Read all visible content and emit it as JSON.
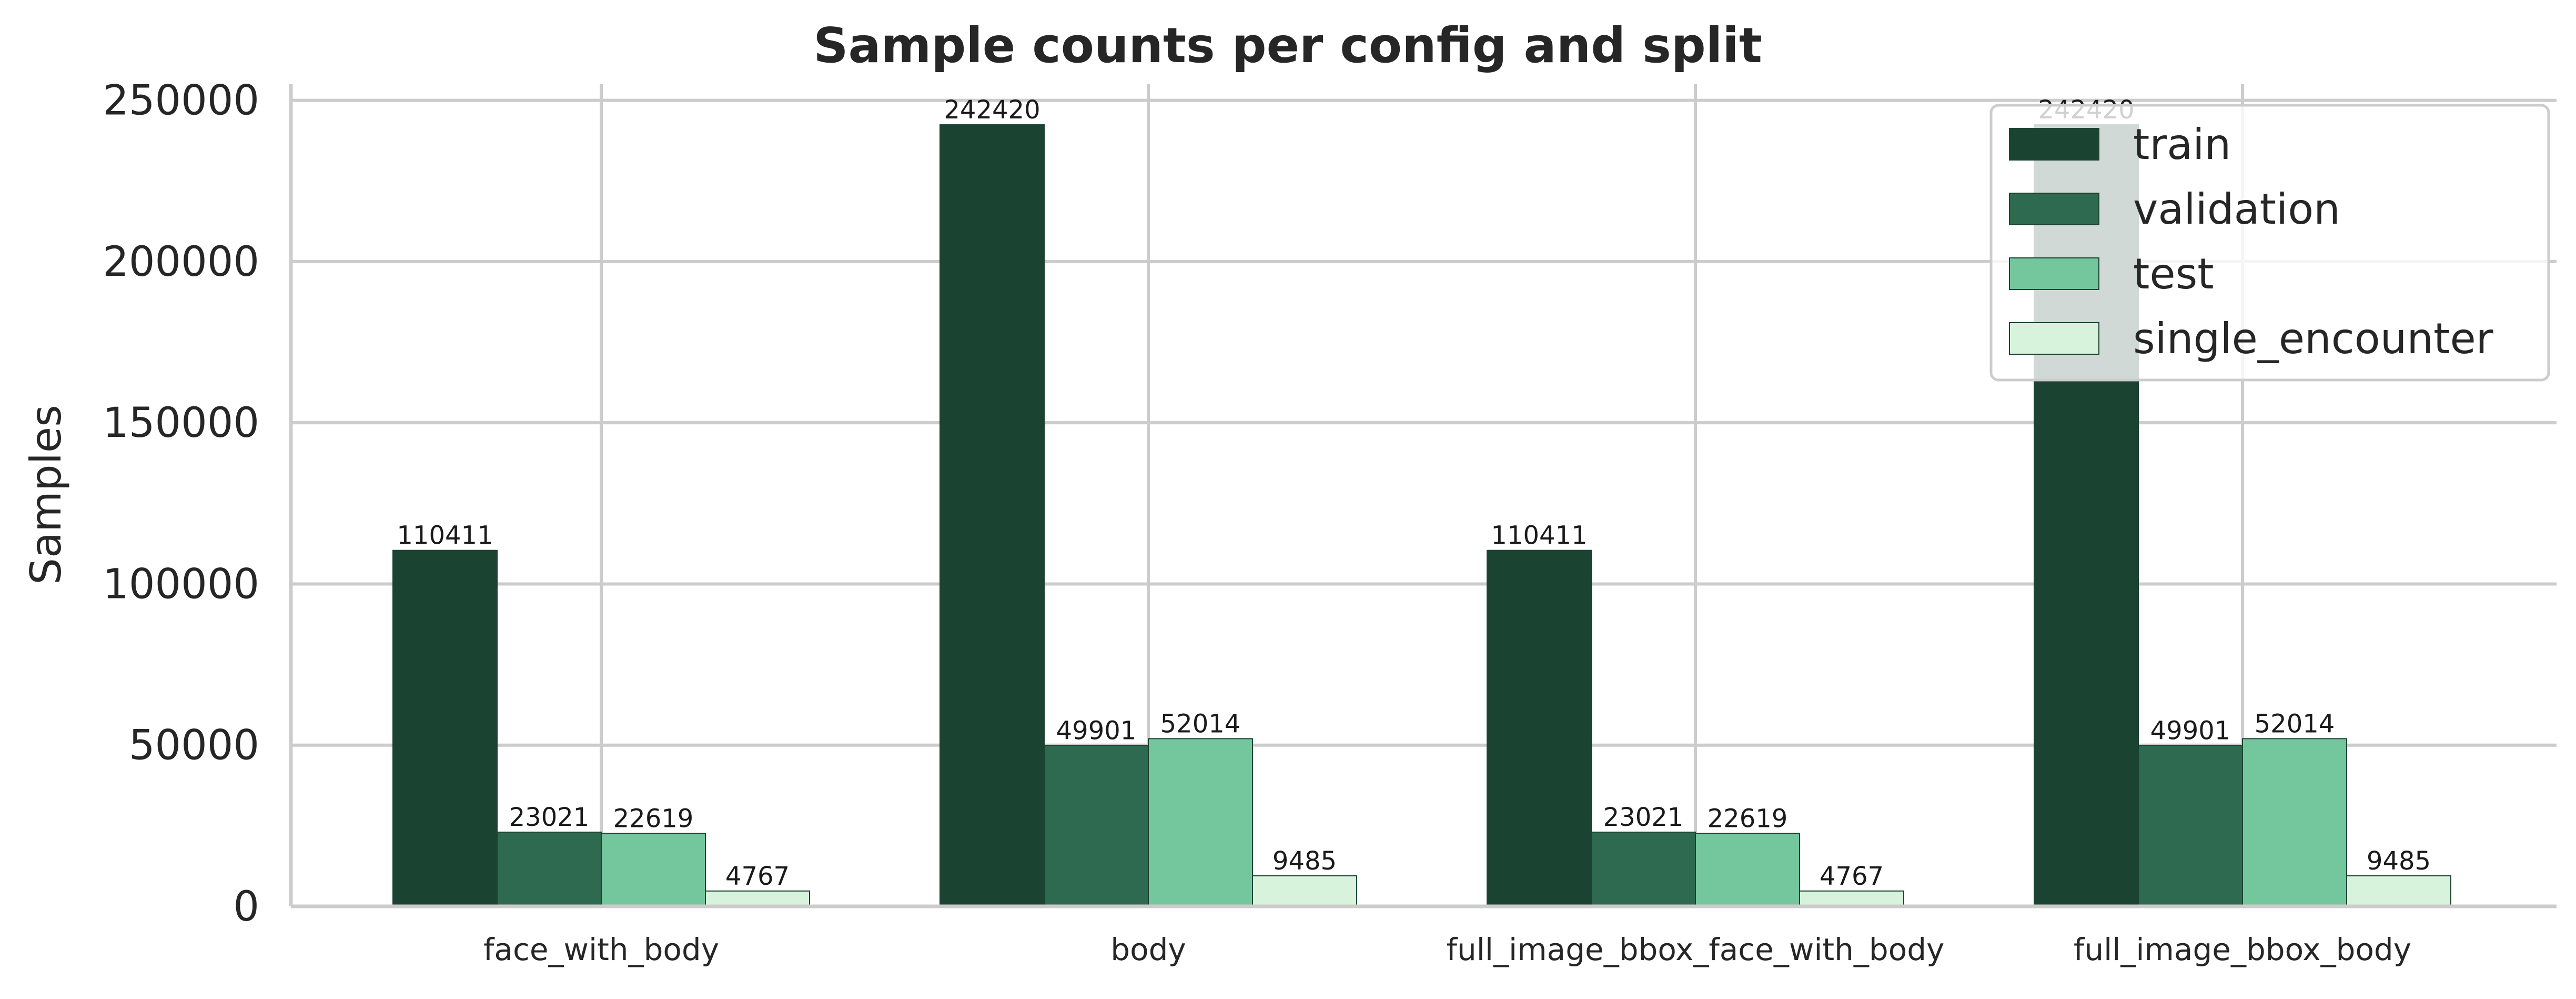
{
  "chart_data": {
    "type": "bar",
    "title": "Sample counts per config and split",
    "xlabel": "",
    "ylabel": "Samples",
    "ylim": [
      0,
      255000
    ],
    "yticks": [
      0,
      50000,
      100000,
      150000,
      200000,
      250000
    ],
    "categories": [
      "face_with_body",
      "body",
      "full_image_bbox_face_with_body",
      "full_image_bbox_body"
    ],
    "series": [
      {
        "name": "train",
        "color": "#1b4332",
        "values": [
          110411,
          242420,
          110411,
          242420
        ]
      },
      {
        "name": "validation",
        "color": "#2d6a4f",
        "values": [
          23021,
          49901,
          23021,
          49901
        ]
      },
      {
        "name": "test",
        "color": "#74c69d",
        "values": [
          22619,
          52014,
          22619,
          52014
        ]
      },
      {
        "name": "single_encounter",
        "color": "#d8f3dc",
        "values": [
          4767,
          9485,
          4767,
          9485
        ]
      }
    ],
    "grid": true,
    "legend_position": "top-right",
    "data_labels": true
  }
}
